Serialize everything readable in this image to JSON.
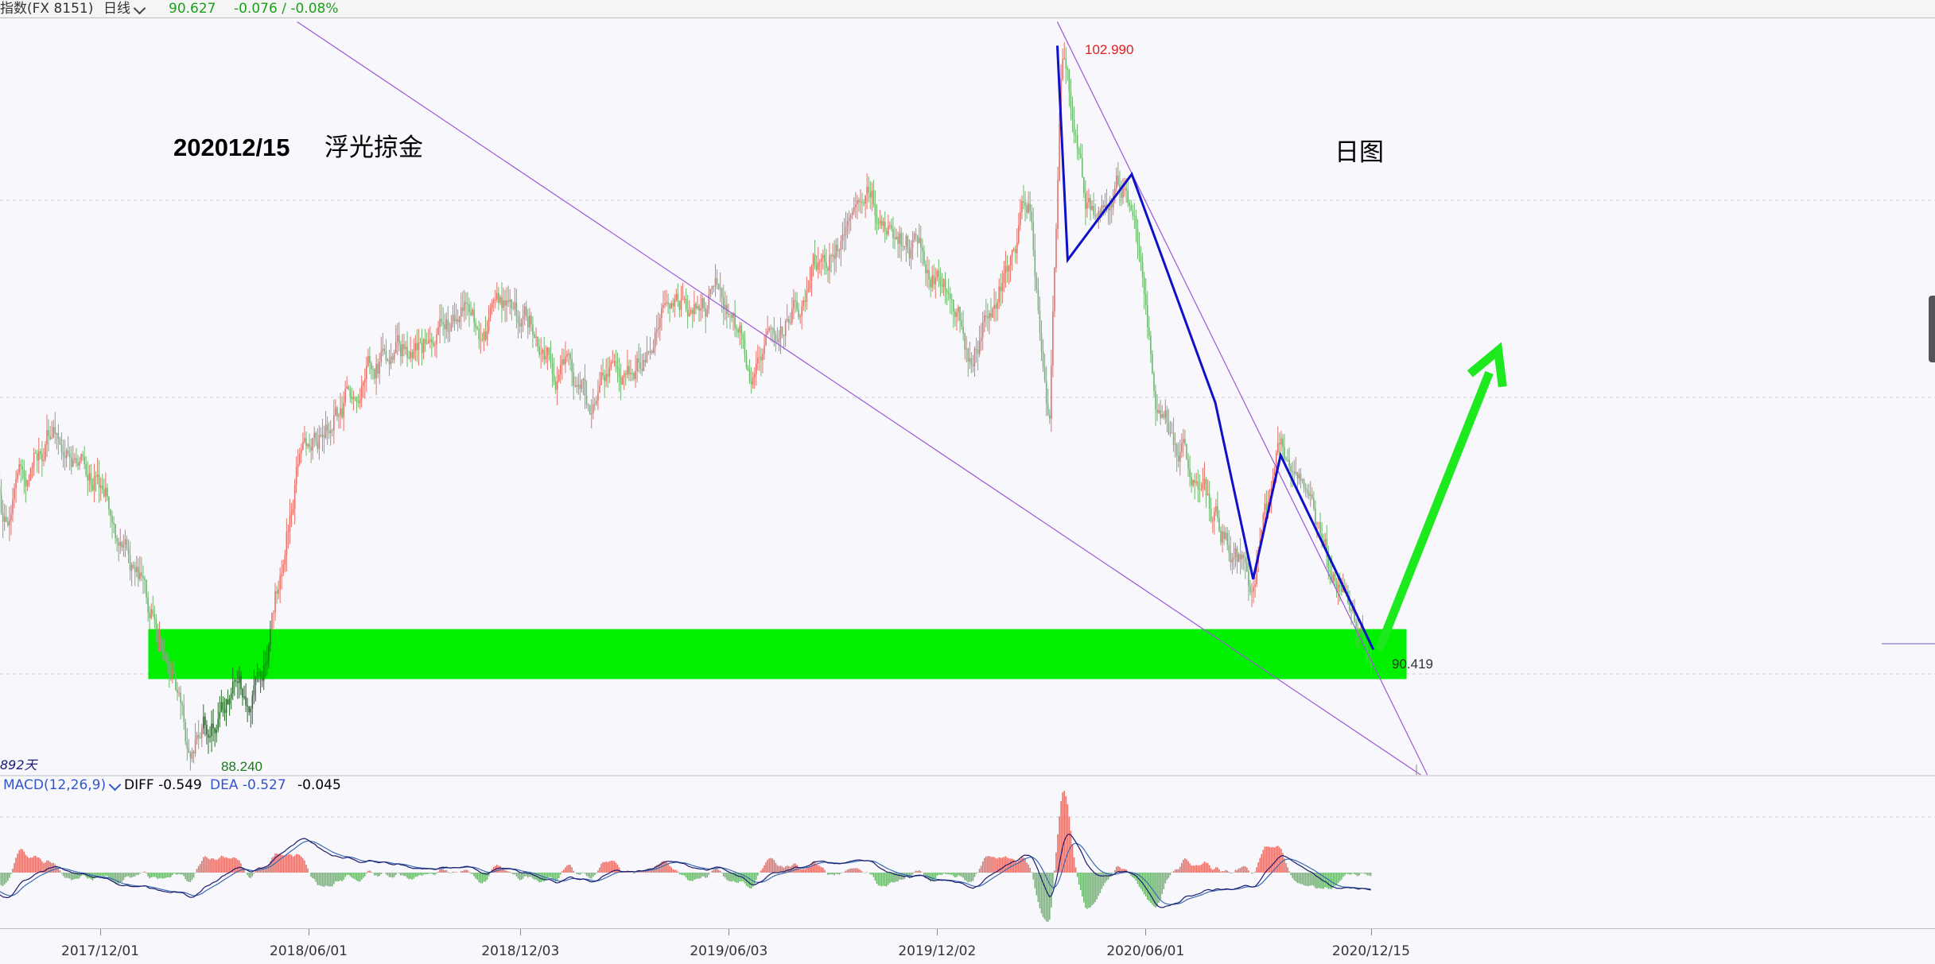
{
  "header": {
    "instrument": "指数(FX 8151)",
    "period": "日线",
    "price": "90.627",
    "change": "-0.076 / -0.08%"
  },
  "annotations": {
    "date_title": "202012/15",
    "author": "浮光掠金",
    "chart_kind": "日图",
    "high_label": "102.990",
    "low_label": "88.240",
    "last_low_label": "90.419",
    "days_label": "892天"
  },
  "macd": {
    "label": "MACD(12,26,9)",
    "diff": "DIFF -0.549",
    "dea": "DEA -0.527",
    "macd_value": "-0.045"
  },
  "colors": {
    "up_candle": "#e8726a",
    "down_candle": "#6fb86f",
    "support_zone": "#00f000",
    "trend_line": "#9b59d8",
    "wave_line": "#1010c8",
    "arrow": "#1ee81e",
    "diff_line": "#1c1c6e",
    "dea_line": "#3a6ab0"
  },
  "chart_data": {
    "type": "candlestick",
    "x_tick_labels": [
      "2017/12/01",
      "2018/06/01",
      "2018/12/03",
      "2019/06/03",
      "2019/12/02",
      "2020/06/01",
      "2020/12/15"
    ],
    "y_range": [
      87.6,
      103.7
    ],
    "y_scale": "linear",
    "grid": "horizontal dashed",
    "price_anchors": [
      {
        "x": "2017/08/01",
        "y": 96.9
      },
      {
        "x": "2017/09/08",
        "y": 93.2
      },
      {
        "x": "2017/10/26",
        "y": 95.2
      },
      {
        "x": "2017/11/30",
        "y": 94.1
      },
      {
        "x": "2018/02/01",
        "y": 90.0
      },
      {
        "x": "2018/02/16",
        "y": 88.24
      },
      {
        "x": "2018/03/30",
        "y": 89.8
      },
      {
        "x": "2018/04/20",
        "y": 89.5
      },
      {
        "x": "2018/05/25",
        "y": 94.8
      },
      {
        "x": "2018/08/15",
        "y": 96.7
      },
      {
        "x": "2018/10/26",
        "y": 97.2
      },
      {
        "x": "2018/12/14",
        "y": 97.4
      },
      {
        "x": "2019/01/31",
        "y": 95.6
      },
      {
        "x": "2019/03/29",
        "y": 97.1
      },
      {
        "x": "2019/05/23",
        "y": 98.0
      },
      {
        "x": "2019/06/25",
        "y": 96.2
      },
      {
        "x": "2019/08/30",
        "y": 98.9
      },
      {
        "x": "2019/10/01",
        "y": 99.6
      },
      {
        "x": "2019/11/29",
        "y": 98.4
      },
      {
        "x": "2019/12/31",
        "y": 96.6
      },
      {
        "x": "2020/02/20",
        "y": 99.8
      },
      {
        "x": "2020/03/09",
        "y": 94.6
      },
      {
        "x": "2020/03/20",
        "y": 102.99
      },
      {
        "x": "2020/04/09",
        "y": 99.6
      },
      {
        "x": "2020/05/14",
        "y": 100.5
      },
      {
        "x": "2020/06/10",
        "y": 96.0
      },
      {
        "x": "2020/07/31",
        "y": 93.2
      },
      {
        "x": "2020/09/01",
        "y": 91.8
      },
      {
        "x": "2020/09/25",
        "y": 94.6
      },
      {
        "x": "2020/11/04",
        "y": 92.4
      },
      {
        "x": "2020/12/15",
        "y": 90.42
      }
    ],
    "marked_points": [
      {
        "label": "102.990",
        "x": "2020/03/20",
        "y": 102.99
      },
      {
        "label": "88.240",
        "x": "2018/02/16",
        "y": 88.24
      },
      {
        "label": "90.419",
        "x": "2020/12/15",
        "y": 90.419
      }
    ],
    "support_zone": {
      "y_low": 89.8,
      "y_high": 90.85,
      "x_start": "2018/01/12",
      "x_end": "2021/01/15"
    },
    "trend_lines": [
      {
        "from": {
          "x": "2018/05/22",
          "y": 103.6
        },
        "to": {
          "x": "2021/02/05",
          "y": 87.65
        }
      },
      {
        "from": {
          "x": "2020/03/16",
          "y": 103.6
        },
        "to": {
          "x": "2021/02/05",
          "y": 87.65
        }
      }
    ],
    "wave_path": [
      {
        "x": "2020/03/16",
        "y": 103.1
      },
      {
        "x": "2020/03/25",
        "y": 98.6
      },
      {
        "x": "2020/05/20",
        "y": 100.4
      },
      {
        "x": "2020/08/01",
        "y": 95.6
      },
      {
        "x": "2020/09/03",
        "y": 91.9
      },
      {
        "x": "2020/09/27",
        "y": 94.5
      },
      {
        "x": "2020/12/17",
        "y": 90.42
      }
    ],
    "projection_arrow": {
      "from": {
        "x": "2020/12/22",
        "y": 90.42
      },
      "to": {
        "x": "2021/04/05",
        "y": 96.7
      }
    },
    "macd_series": {
      "DIFF": -0.549,
      "DEA": -0.527,
      "MACD": -0.045
    }
  }
}
